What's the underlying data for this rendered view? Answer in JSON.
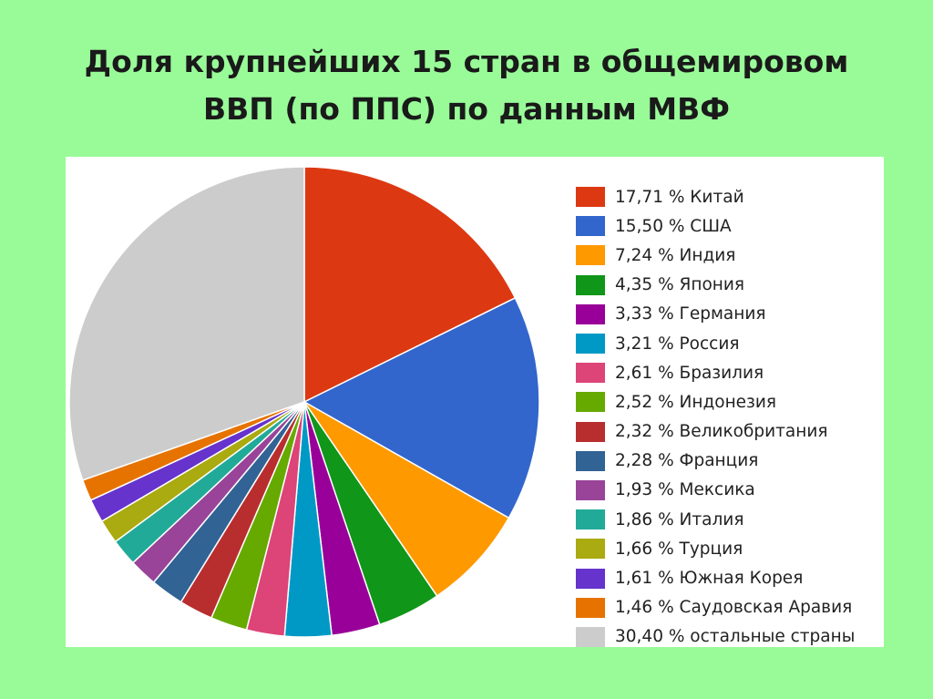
{
  "title_line1": "Доля крупнейших 15 стран в общемировом",
  "title_line2": "ВВП (по ППС) по данным МВФ",
  "chart_data": {
    "type": "pie",
    "title": "Доля крупнейших 15 стран в общемировом ВВП (по ППС) по данным МВФ",
    "legend_position": "right",
    "slices": [
      {
        "label": "17,71 % Китай",
        "name": "Китай",
        "value": 17.71,
        "color": "#dc3912"
      },
      {
        "label": "15,50 % США",
        "name": "США",
        "value": 15.5,
        "color": "#3366cc"
      },
      {
        "label": "7,24 % Индия",
        "name": "Индия",
        "value": 7.24,
        "color": "#ff9900"
      },
      {
        "label": "4,35 % Япония",
        "name": "Япония",
        "value": 4.35,
        "color": "#109618"
      },
      {
        "label": "3,33 % Германия",
        "name": "Германия",
        "value": 3.33,
        "color": "#990099"
      },
      {
        "label": "3,21 % Россия",
        "name": "Россия",
        "value": 3.21,
        "color": "#0099c6"
      },
      {
        "label": "2,61 % Бразилия",
        "name": "Бразилия",
        "value": 2.61,
        "color": "#dd4477"
      },
      {
        "label": "2,52 % Индонезия",
        "name": "Индонезия",
        "value": 2.52,
        "color": "#66aa00"
      },
      {
        "label": "2,32 % Великобритания",
        "name": "Великобритания",
        "value": 2.32,
        "color": "#b82e2e"
      },
      {
        "label": "2,28 % Франция",
        "name": "Франция",
        "value": 2.28,
        "color": "#316395"
      },
      {
        "label": "1,93 % Мексика",
        "name": "Мексика",
        "value": 1.93,
        "color": "#994499"
      },
      {
        "label": "1,86 % Италия",
        "name": "Италия",
        "value": 1.86,
        "color": "#22aa99"
      },
      {
        "label": "1,66 % Турция",
        "name": "Турция",
        "value": 1.66,
        "color": "#aaaa11"
      },
      {
        "label": "1,61 % Южная Корея",
        "name": "Южная Корея",
        "value": 1.61,
        "color": "#6633cc"
      },
      {
        "label": "1,46 % Саудовская Аравия",
        "name": "Саудовская Аравия",
        "value": 1.46,
        "color": "#e67300"
      },
      {
        "label": "30,40 % остальные страны",
        "name": "остальные страны",
        "value": 30.4,
        "color": "#cccccc"
      }
    ]
  }
}
